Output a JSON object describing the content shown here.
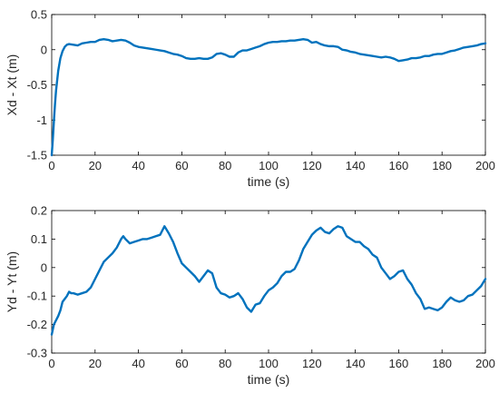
{
  "chart_data": [
    {
      "type": "line",
      "xlabel": "time (s)",
      "ylabel": "Xd - Xt (m)",
      "xlim": [
        0,
        200
      ],
      "ylim": [
        -1.5,
        0.5
      ],
      "xticks": [
        0,
        20,
        40,
        60,
        80,
        100,
        120,
        140,
        160,
        180,
        200
      ],
      "yticks": [
        -1.5,
        -1,
        -0.5,
        0,
        0.5
      ],
      "xtick_labels": [
        "0",
        "20",
        "40",
        "60",
        "80",
        "100",
        "120",
        "140",
        "160",
        "180",
        "200"
      ],
      "ytick_labels": [
        "-1.5",
        "-1",
        "-0.5",
        "0",
        "0.5"
      ],
      "grid": false,
      "color": "#0072BD",
      "series": [
        {
          "x": [
            0,
            0.5,
            1,
            1.5,
            2,
            3,
            4,
            5,
            6,
            7,
            8,
            10,
            12,
            14,
            16,
            18,
            20,
            22,
            24,
            26,
            28,
            30,
            32,
            34,
            36,
            38,
            40,
            42,
            44,
            46,
            48,
            50,
            52,
            54,
            56,
            58,
            60,
            62,
            64,
            66,
            68,
            70,
            72,
            74,
            76,
            78,
            80,
            82,
            84,
            86,
            88,
            90,
            92,
            94,
            96,
            98,
            100,
            102,
            104,
            106,
            108,
            110,
            112,
            114,
            116,
            118,
            120,
            122,
            124,
            126,
            128,
            130,
            132,
            134,
            136,
            138,
            140,
            142,
            144,
            146,
            148,
            150,
            152,
            154,
            156,
            158,
            160,
            162,
            164,
            166,
            168,
            170,
            172,
            174,
            176,
            178,
            180,
            182,
            184,
            186,
            188,
            190,
            192,
            194,
            196,
            198,
            200
          ],
          "y": [
            -1.5,
            -1.28,
            -1.02,
            -0.78,
            -0.58,
            -0.3,
            -0.12,
            -0.02,
            0.04,
            0.07,
            0.08,
            0.07,
            0.06,
            0.09,
            0.1,
            0.11,
            0.11,
            0.14,
            0.15,
            0.14,
            0.12,
            0.13,
            0.14,
            0.13,
            0.1,
            0.06,
            0.04,
            0.03,
            0.02,
            0.01,
            0.0,
            -0.01,
            -0.02,
            -0.04,
            -0.06,
            -0.07,
            -0.09,
            -0.12,
            -0.13,
            -0.13,
            -0.12,
            -0.13,
            -0.13,
            -0.11,
            -0.06,
            -0.05,
            -0.07,
            -0.1,
            -0.1,
            -0.04,
            -0.01,
            -0.01,
            0.01,
            0.03,
            0.05,
            0.08,
            0.1,
            0.11,
            0.11,
            0.12,
            0.12,
            0.13,
            0.13,
            0.14,
            0.15,
            0.14,
            0.1,
            0.11,
            0.08,
            0.06,
            0.05,
            0.05,
            0.04,
            0.0,
            -0.01,
            -0.03,
            -0.04,
            -0.06,
            -0.07,
            -0.08,
            -0.09,
            -0.1,
            -0.11,
            -0.1,
            -0.11,
            -0.13,
            -0.16,
            -0.15,
            -0.14,
            -0.12,
            -0.12,
            -0.11,
            -0.09,
            -0.09,
            -0.07,
            -0.06,
            -0.06,
            -0.04,
            -0.02,
            -0.01,
            0.01,
            0.03,
            0.04,
            0.05,
            0.06,
            0.08,
            0.09
          ]
        }
      ]
    },
    {
      "type": "line",
      "xlabel": "time (s)",
      "ylabel": "Yd - Yt (m)",
      "xlim": [
        0,
        200
      ],
      "ylim": [
        -0.3,
        0.2
      ],
      "xticks": [
        0,
        20,
        40,
        60,
        80,
        100,
        120,
        140,
        160,
        180,
        200
      ],
      "yticks": [
        -0.3,
        -0.2,
        -0.1,
        0,
        0.1,
        0.2
      ],
      "xtick_labels": [
        "0",
        "20",
        "40",
        "60",
        "80",
        "100",
        "120",
        "140",
        "160",
        "180",
        "200"
      ],
      "ytick_labels": [
        "-0.3",
        "-0.2",
        "-0.1",
        "0",
        "0.1",
        "0.2"
      ],
      "grid": false,
      "color": "#0072BD",
      "series": [
        {
          "x": [
            0,
            1,
            2,
            3,
            4,
            5,
            6,
            7,
            8,
            9,
            10,
            12,
            14,
            16,
            18,
            20,
            22,
            24,
            26,
            28,
            30,
            32,
            33,
            34,
            36,
            38,
            40,
            42,
            44,
            46,
            48,
            50,
            52,
            54,
            56,
            58,
            60,
            62,
            64,
            66,
            68,
            70,
            72,
            74,
            76,
            78,
            80,
            82,
            84,
            86,
            88,
            90,
            92,
            94,
            96,
            98,
            100,
            102,
            104,
            106,
            108,
            110,
            112,
            114,
            116,
            118,
            120,
            122,
            124,
            126,
            128,
            130,
            132,
            134,
            136,
            138,
            140,
            142,
            144,
            146,
            148,
            150,
            152,
            154,
            156,
            158,
            160,
            162,
            164,
            166,
            168,
            170,
            172,
            174,
            176,
            178,
            180,
            182,
            184,
            186,
            188,
            190,
            192,
            194,
            196,
            198,
            200
          ],
          "y": [
            -0.235,
            -0.2,
            -0.185,
            -0.17,
            -0.15,
            -0.12,
            -0.11,
            -0.1,
            -0.085,
            -0.09,
            -0.09,
            -0.095,
            -0.09,
            -0.085,
            -0.07,
            -0.04,
            -0.01,
            0.02,
            0.035,
            0.05,
            0.07,
            0.1,
            0.11,
            0.1,
            0.085,
            0.09,
            0.095,
            0.1,
            0.1,
            0.105,
            0.11,
            0.115,
            0.145,
            0.12,
            0.09,
            0.05,
            0.015,
            0.0,
            -0.015,
            -0.03,
            -0.05,
            -0.03,
            -0.01,
            -0.02,
            -0.07,
            -0.09,
            -0.095,
            -0.105,
            -0.1,
            -0.09,
            -0.11,
            -0.14,
            -0.155,
            -0.13,
            -0.125,
            -0.1,
            -0.08,
            -0.07,
            -0.055,
            -0.03,
            -0.015,
            -0.015,
            -0.005,
            0.025,
            0.065,
            0.09,
            0.115,
            0.13,
            0.14,
            0.125,
            0.12,
            0.135,
            0.145,
            0.14,
            0.11,
            0.1,
            0.09,
            0.09,
            0.075,
            0.065,
            0.045,
            0.035,
            0.0,
            -0.02,
            -0.04,
            -0.03,
            -0.015,
            -0.01,
            -0.04,
            -0.06,
            -0.09,
            -0.11,
            -0.145,
            -0.14,
            -0.145,
            -0.15,
            -0.14,
            -0.12,
            -0.105,
            -0.115,
            -0.12,
            -0.115,
            -0.1,
            -0.095,
            -0.08,
            -0.065,
            -0.04
          ]
        }
      ]
    }
  ]
}
